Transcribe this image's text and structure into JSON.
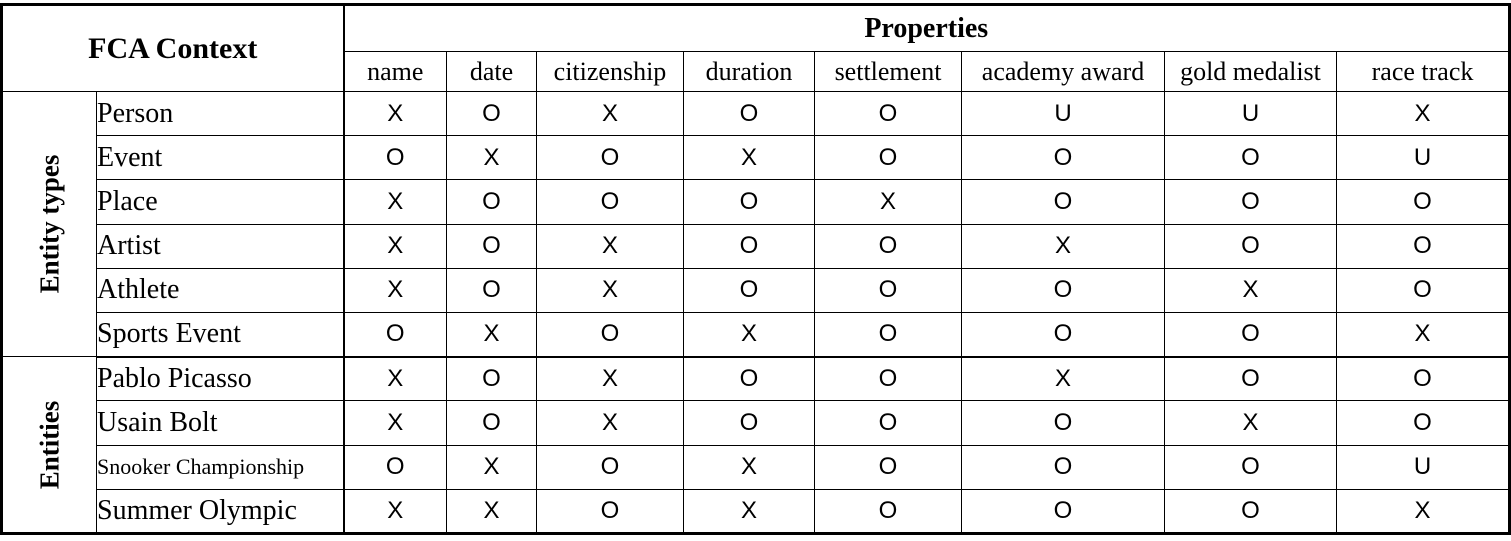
{
  "table": {
    "corner_label": "FCA Context",
    "properties_header": "Properties",
    "columns": [
      "name",
      "date",
      "citizenship",
      "duration",
      "settlement",
      "academy award",
      "gold medalist",
      "race track"
    ],
    "sections": [
      {
        "label": "Entity types",
        "rows": [
          {
            "label": "Person",
            "values": [
              "X",
              "O",
              "X",
              "O",
              "O",
              "U",
              "U",
              "X"
            ]
          },
          {
            "label": "Event",
            "values": [
              "O",
              "X",
              "O",
              "X",
              "O",
              "O",
              "O",
              "U"
            ]
          },
          {
            "label": "Place",
            "values": [
              "X",
              "O",
              "O",
              "O",
              "X",
              "O",
              "O",
              "O"
            ]
          },
          {
            "label": "Artist",
            "values": [
              "X",
              "O",
              "X",
              "O",
              "O",
              "X",
              "O",
              "O"
            ]
          },
          {
            "label": "Athlete",
            "values": [
              "X",
              "O",
              "X",
              "O",
              "O",
              "O",
              "X",
              "O"
            ]
          },
          {
            "label": "Sports Event",
            "values": [
              "O",
              "X",
              "O",
              "X",
              "O",
              "O",
              "O",
              "X"
            ]
          }
        ]
      },
      {
        "label": "Entities",
        "rows": [
          {
            "label": "Pablo Picasso",
            "values": [
              "X",
              "O",
              "X",
              "O",
              "O",
              "X",
              "O",
              "O"
            ]
          },
          {
            "label": "Usain Bolt",
            "values": [
              "X",
              "O",
              "X",
              "O",
              "O",
              "O",
              "X",
              "O"
            ]
          },
          {
            "label": "Snooker Championship",
            "values": [
              "O",
              "X",
              "O",
              "X",
              "O",
              "O",
              "O",
              "U"
            ]
          },
          {
            "label": "Summer Olympic",
            "values": [
              "X",
              "X",
              "O",
              "X",
              "O",
              "O",
              "O",
              "X"
            ]
          }
        ]
      }
    ]
  },
  "chart_data": {
    "type": "table",
    "title": "FCA Context",
    "column_group": "Properties",
    "columns": [
      "name",
      "date",
      "citizenship",
      "duration",
      "settlement",
      "academy award",
      "gold medalist",
      "race track"
    ],
    "row_groups": [
      "Entity types",
      "Entities"
    ],
    "legend_symbols": [
      "X",
      "O",
      "U"
    ]
  },
  "colors": {
    "border": "#000000",
    "background": "#ffffff",
    "text": "#000000"
  }
}
